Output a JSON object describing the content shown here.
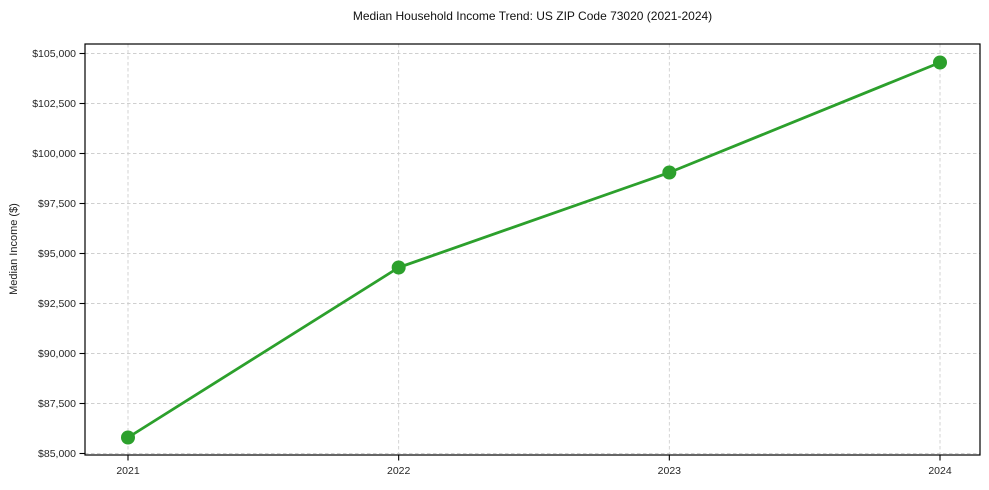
{
  "chart_data": {
    "type": "line",
    "title": "Median Household Income Trend: US ZIP Code 73020 (2021-2024)",
    "xlabel": "",
    "ylabel": "Median Income ($)",
    "categories": [
      "2021",
      "2022",
      "2023",
      "2024"
    ],
    "series": [
      {
        "values": [
          85800,
          94300,
          99050,
          104550
        ],
        "color": "#2ca02c",
        "markers": true
      }
    ],
    "ylim": [
      85000,
      105000
    ],
    "ytick_step": 2500,
    "ytick_labels": [
      "$85,000",
      "$87,500",
      "$90,000",
      "$92,500",
      "$95,000",
      "$97,500",
      "$100,000",
      "$102,500",
      "$105,000"
    ],
    "grid": true,
    "grid_style": "dashed",
    "grid_color": "#cfcfcf",
    "legend": "none",
    "background": "#ffffff"
  }
}
